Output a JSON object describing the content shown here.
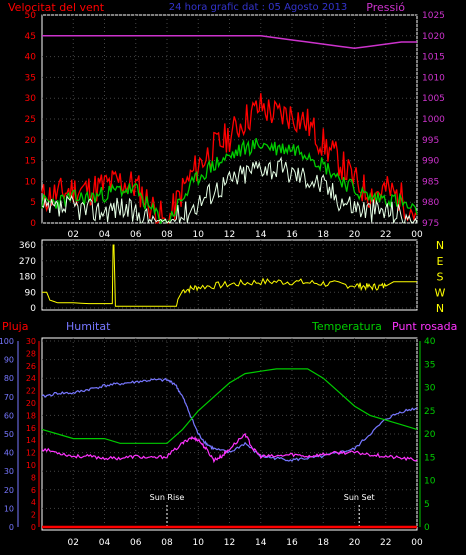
{
  "header": {
    "wind_speed_label": "Velocitat del vent",
    "center_title": "24 hora grafic dat : 05 Agosto 2013",
    "pressure_label": "Pressió"
  },
  "colors": {
    "background": "#000000",
    "frame": "#ffffff",
    "wind_gust": "#ff0000",
    "wind_avg": "#00cc00",
    "wind_min": "#e6ffe6",
    "pressure": "#cc33cc",
    "direction": "#ffff00",
    "humidity": "#7777ff",
    "temperature": "#00cc00",
    "dewpoint": "#ff33ff",
    "rain": "#ff0000",
    "marker": "#ffffff"
  },
  "hour_labels": [
    "02",
    "04",
    "06",
    "08",
    "10",
    "12",
    "14",
    "16",
    "18",
    "20",
    "22",
    "00"
  ],
  "chart_data": [
    {
      "type": "line",
      "id": "wind-pressure",
      "left_axis": {
        "label": "Velocitat del vent",
        "range": [
          0,
          50
        ],
        "ticks": [
          "0",
          "5",
          "10",
          "15",
          "20",
          "25",
          "30",
          "35",
          "40",
          "45",
          "50"
        ]
      },
      "right_axis": {
        "label": "Pressió",
        "range": [
          975,
          1025
        ],
        "ticks": [
          "975",
          "980",
          "985",
          "990",
          "995",
          "1000",
          "1005",
          "1010",
          "1015",
          "1020",
          "1025"
        ]
      },
      "x_range": [
        0,
        24
      ],
      "series": [
        {
          "name": "Pressió",
          "axis": "right",
          "x": [
            0,
            2,
            4,
            6,
            8,
            10,
            12,
            14,
            15,
            16,
            17,
            18,
            19,
            20,
            21,
            22,
            23,
            24
          ],
          "y": [
            1020,
            1020,
            1020,
            1020,
            1020,
            1020,
            1020,
            1020,
            1019.5,
            1019,
            1018.5,
            1018,
            1017.5,
            1017,
            1017.5,
            1018,
            1018.5,
            1018.5
          ]
        },
        {
          "axis": "left",
          "role": "gust",
          "x": [
            0,
            1,
            2,
            3,
            4,
            5,
            6,
            7,
            8,
            9,
            10,
            11,
            12,
            13,
            14,
            15,
            16,
            17,
            18,
            19,
            20,
            21,
            22,
            23,
            24
          ],
          "y": [
            6,
            7,
            8,
            8,
            9,
            10,
            9,
            4,
            0,
            8,
            14,
            18,
            21,
            25,
            28,
            26,
            26,
            24,
            19,
            15,
            10,
            7,
            8,
            6,
            2
          ]
        },
        {
          "axis": "left",
          "role": "average",
          "x": [
            0,
            1,
            2,
            3,
            4,
            5,
            6,
            7,
            8,
            9,
            10,
            11,
            12,
            13,
            14,
            15,
            16,
            17,
            18,
            19,
            20,
            21,
            22,
            23,
            24
          ],
          "y": [
            5,
            5,
            6,
            6,
            7,
            8,
            8,
            3,
            0,
            6,
            11,
            14,
            16,
            18,
            19,
            18,
            18,
            17,
            14,
            11,
            8,
            6,
            6,
            5,
            2
          ]
        },
        {
          "axis": "left",
          "role": "minimum",
          "x": [
            0,
            1,
            2,
            3,
            4,
            5,
            6,
            7,
            8,
            9,
            10,
            11,
            12,
            13,
            14,
            15,
            16,
            17,
            18,
            19,
            20,
            21,
            22,
            23,
            24
          ],
          "y": [
            3,
            3,
            4,
            3,
            3,
            4,
            2,
            1,
            0,
            2,
            5,
            8,
            10,
            12,
            14,
            13,
            12,
            11,
            9,
            6,
            4,
            3,
            3,
            2,
            0
          ]
        }
      ]
    },
    {
      "type": "line",
      "id": "wind-direction",
      "left_ticks": [
        "0",
        "90",
        "180",
        "270",
        "360"
      ],
      "y_range": [
        0,
        360
      ],
      "right_labels": [
        "N",
        "W",
        "S",
        "E",
        "N"
      ],
      "x_range": [
        0,
        24
      ],
      "series": [
        {
          "x": [
            0,
            0.3,
            0.5,
            1,
            2,
            3,
            4,
            4.5,
            4.55,
            4.6,
            4.7,
            5,
            6,
            7,
            8,
            8.6,
            8.7,
            9,
            10,
            12,
            14,
            16,
            18,
            20,
            21,
            22,
            22.5,
            23,
            24
          ],
          "y": [
            90,
            90,
            45,
            30,
            30,
            25,
            25,
            25,
            360,
            360,
            10,
            10,
            10,
            10,
            10,
            10,
            50,
            100,
            120,
            135,
            150,
            150,
            140,
            130,
            120,
            125,
            150,
            150,
            150
          ]
        }
      ]
    },
    {
      "type": "line",
      "id": "temp-humidity",
      "top_labels": {
        "rain": "Pluja",
        "humidity": "Humitat",
        "temperature": "Temperatura",
        "dewpoint": "Punt rosada"
      },
      "humidity_axis": {
        "range": [
          0,
          100
        ],
        "ticks": [
          "0",
          "10",
          "20",
          "30",
          "40",
          "50",
          "60",
          "70",
          "80",
          "90",
          "100"
        ]
      },
      "rain_axis": {
        "range": [
          0,
          30
        ],
        "ticks": [
          "0",
          "2",
          "4",
          "6",
          "8",
          "10",
          "12",
          "14",
          "16",
          "18",
          "20",
          "22",
          "24",
          "26",
          "28",
          "30"
        ]
      },
      "temperature_axis": {
        "range": [
          0,
          40
        ],
        "ticks": [
          "0",
          "5",
          "10",
          "15",
          "20",
          "25",
          "30",
          "35",
          "40"
        ]
      },
      "x_range": [
        0,
        24
      ],
      "annotations": [
        {
          "label": "Sun Rise",
          "x": 8.0
        },
        {
          "label": "Sun Set",
          "x": 20.3
        }
      ],
      "series": [
        {
          "name": "Humitat",
          "axis": "humidity",
          "x": [
            0,
            1,
            2,
            3,
            4,
            5,
            6,
            7,
            8,
            8.5,
            9,
            9.5,
            10,
            10.5,
            11,
            12,
            13,
            14,
            15,
            16,
            17,
            18,
            19,
            20,
            21,
            22,
            23,
            24
          ],
          "y": [
            70,
            72,
            72,
            74,
            76,
            77,
            78,
            79,
            79,
            77,
            70,
            60,
            50,
            45,
            42,
            40,
            45,
            38,
            37,
            36,
            37,
            38,
            40,
            42,
            50,
            58,
            62,
            64
          ]
        },
        {
          "name": "Temperatura",
          "axis": "temperature",
          "x": [
            0,
            1,
            2,
            3,
            4,
            5,
            6,
            7,
            8,
            9,
            10,
            11,
            12,
            13,
            14,
            15,
            16,
            17,
            18,
            19,
            20,
            21,
            22,
            23,
            24
          ],
          "y": [
            21,
            20,
            19,
            19,
            19,
            18,
            18,
            18,
            18,
            21,
            25,
            28,
            31,
            33,
            33.5,
            34,
            34,
            34,
            32,
            29,
            26,
            24,
            23,
            22,
            21
          ]
        },
        {
          "name": "Punt rosada",
          "axis": "humidity",
          "x": [
            0,
            1,
            2,
            3,
            4,
            5,
            6,
            7,
            8,
            9,
            9.5,
            10,
            10.5,
            11,
            11.5,
            12,
            13,
            13.5,
            14,
            15,
            16,
            17,
            18,
            19,
            20,
            21,
            22,
            23,
            24
          ],
          "y": [
            42,
            40,
            38,
            38,
            37,
            37,
            38,
            37,
            38,
            45,
            48,
            47,
            42,
            36,
            38,
            42,
            50,
            42,
            38,
            38,
            39,
            38,
            39,
            40,
            40,
            39,
            38,
            37,
            36
          ]
        },
        {
          "name": "Pluja",
          "axis": "rain",
          "x": [
            0,
            24
          ],
          "y": [
            0,
            0
          ]
        }
      ]
    }
  ]
}
